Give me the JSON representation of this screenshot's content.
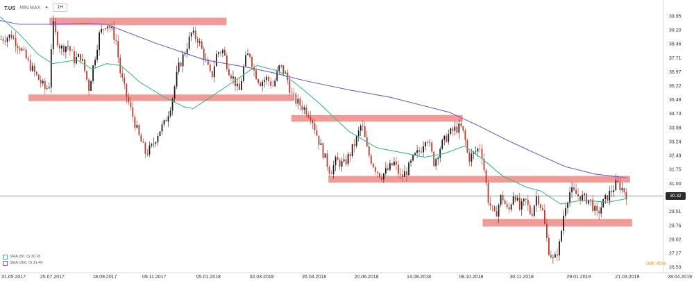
{
  "toolbar": {
    "symbol": "T.US",
    "controls": "MIN MAX",
    "timeframe": "1H"
  },
  "legend": [
    {
      "label": "SMA (50, 0) 30.28",
      "color": "#3cb98a"
    },
    {
      "label": "SMA (200, 0) 31.40",
      "color": "#7c5cc4"
    }
  ],
  "current_price": "30.32",
  "countdown": "09h 45m",
  "colors": {
    "bull": "#1a1a1a",
    "bear": "#c0392b",
    "zone": "#ef8a86",
    "sma50": "#3cb98a",
    "sma200": "#7c5cc4"
  },
  "chart_data": {
    "type": "candlestick",
    "x_range": [
      "2017-05-31",
      "2019-04-28"
    ],
    "y_range": [
      26.53,
      40.5
    ],
    "y_ticks": [
      "39.95",
      "39.20",
      "38.46",
      "37.71",
      "36.97",
      "36.22",
      "35.48",
      "34.73",
      "33.98",
      "33.24",
      "32.49",
      "31.75",
      "31.00",
      "30.25",
      "29.51",
      "28.76",
      "28.02",
      "27.27",
      "26.53"
    ],
    "x_ticks": [
      "31.05.2017",
      "25.07.2017",
      "18.09.2017",
      "09.11.2017",
      "05.01.2018",
      "02.03.2018",
      "26.04.2018",
      "20.06.2018",
      "14.08.2018",
      "08.10.2018",
      "30.11.2018",
      "29.01.2019",
      "21.03.2019",
      "28.04.2019"
    ],
    "x_tick_dates": [
      "2017-05-31",
      "2017-07-25",
      "2017-09-18",
      "2017-11-09",
      "2018-01-05",
      "2018-03-02",
      "2018-04-26",
      "2018-06-20",
      "2018-08-14",
      "2018-10-08",
      "2018-11-30",
      "2019-01-29",
      "2019-03-21",
      "2019-04-28"
    ],
    "price_path": [
      [
        "2017-05-31",
        38.7
      ],
      [
        "2017-06-12",
        38.9
      ],
      [
        "2017-06-22",
        38.2
      ],
      [
        "2017-06-30",
        37.4
      ],
      [
        "2017-07-10",
        36.6
      ],
      [
        "2017-07-18",
        36.0
      ],
      [
        "2017-07-22",
        36.3
      ],
      [
        "2017-07-25",
        39.6
      ],
      [
        "2017-07-29",
        38.8
      ],
      [
        "2017-08-03",
        38.2
      ],
      [
        "2017-08-10",
        38.4
      ],
      [
        "2017-08-17",
        37.6
      ],
      [
        "2017-08-24",
        37.8
      ],
      [
        "2017-08-30",
        36.6
      ],
      [
        "2017-09-01",
        36.0
      ],
      [
        "2017-09-06",
        37.3
      ],
      [
        "2017-09-12",
        38.9
      ],
      [
        "2017-09-20",
        39.6
      ],
      [
        "2017-09-25",
        39.2
      ],
      [
        "2017-09-30",
        38.6
      ],
      [
        "2017-10-04",
        37.0
      ],
      [
        "2017-10-10",
        35.8
      ],
      [
        "2017-10-18",
        34.5
      ],
      [
        "2017-10-24",
        33.5
      ],
      [
        "2017-10-31",
        32.6
      ],
      [
        "2017-11-06",
        32.9
      ],
      [
        "2017-11-14",
        33.8
      ],
      [
        "2017-11-20",
        34.2
      ],
      [
        "2017-11-27",
        35.3
      ],
      [
        "2017-12-04",
        37.1
      ],
      [
        "2017-12-11",
        38.0
      ],
      [
        "2017-12-18",
        39.0
      ],
      [
        "2017-12-25",
        38.7
      ],
      [
        "2018-01-01",
        37.7
      ],
      [
        "2018-01-08",
        36.6
      ],
      [
        "2018-01-14",
        38.0
      ],
      [
        "2018-01-20",
        38.1
      ],
      [
        "2018-01-26",
        37.1
      ],
      [
        "2018-02-02",
        36.4
      ],
      [
        "2018-02-06",
        35.8
      ],
      [
        "2018-02-12",
        37.5
      ],
      [
        "2018-02-17",
        38.0
      ],
      [
        "2018-02-22",
        37.0
      ],
      [
        "2018-02-28",
        36.4
      ],
      [
        "2018-03-07",
        36.6
      ],
      [
        "2018-03-14",
        36.2
      ],
      [
        "2018-03-21",
        37.3
      ],
      [
        "2018-03-28",
        36.7
      ],
      [
        "2018-04-03",
        35.6
      ],
      [
        "2018-04-09",
        35.3
      ],
      [
        "2018-04-16",
        35.0
      ],
      [
        "2018-04-23",
        34.6
      ],
      [
        "2018-04-30",
        33.4
      ],
      [
        "2018-05-07",
        32.4
      ],
      [
        "2018-05-13",
        31.6
      ],
      [
        "2018-05-19",
        32.2
      ],
      [
        "2018-05-27",
        32.0
      ],
      [
        "2018-06-03",
        32.6
      ],
      [
        "2018-06-09",
        33.3
      ],
      [
        "2018-06-15",
        34.2
      ],
      [
        "2018-06-21",
        32.7
      ],
      [
        "2018-06-28",
        31.9
      ],
      [
        "2018-07-05",
        31.4
      ],
      [
        "2018-07-12",
        31.7
      ],
      [
        "2018-07-19",
        32.1
      ],
      [
        "2018-07-26",
        31.3
      ],
      [
        "2018-08-02",
        31.7
      ],
      [
        "2018-08-09",
        32.4
      ],
      [
        "2018-08-16",
        32.8
      ],
      [
        "2018-08-22",
        33.6
      ],
      [
        "2018-08-30",
        32.1
      ],
      [
        "2018-09-06",
        33.0
      ],
      [
        "2018-09-14",
        33.6
      ],
      [
        "2018-09-21",
        33.9
      ],
      [
        "2018-09-27",
        34.0
      ],
      [
        "2018-10-01",
        33.5
      ],
      [
        "2018-10-05",
        32.3
      ],
      [
        "2018-10-11",
        32.6
      ],
      [
        "2018-10-18",
        33.0
      ],
      [
        "2018-10-22",
        31.6
      ],
      [
        "2018-10-26",
        30.1
      ],
      [
        "2018-11-02",
        29.2
      ],
      [
        "2018-11-09",
        30.4
      ],
      [
        "2018-11-16",
        29.4
      ],
      [
        "2018-11-22",
        30.6
      ],
      [
        "2018-11-28",
        29.6
      ],
      [
        "2018-12-04",
        30.1
      ],
      [
        "2018-12-10",
        29.3
      ],
      [
        "2018-12-16",
        30.4
      ],
      [
        "2018-12-22",
        29.5
      ],
      [
        "2018-12-28",
        27.5
      ],
      [
        "2019-01-03",
        26.8
      ],
      [
        "2019-01-09",
        27.8
      ],
      [
        "2019-01-14",
        29.7
      ],
      [
        "2019-01-20",
        30.6
      ],
      [
        "2019-01-27",
        30.4
      ],
      [
        "2019-02-03",
        30.2
      ],
      [
        "2019-02-10",
        30.1
      ],
      [
        "2019-02-17",
        29.3
      ],
      [
        "2019-02-24",
        30.0
      ],
      [
        "2019-03-03",
        30.5
      ],
      [
        "2019-03-10",
        31.0
      ],
      [
        "2019-03-14",
        30.8
      ],
      [
        "2019-03-18",
        30.6
      ],
      [
        "2019-03-21",
        30.3
      ]
    ],
    "sma50": [
      [
        "2017-05-31",
        39.9
      ],
      [
        "2017-06-20",
        39.0
      ],
      [
        "2017-07-10",
        37.9
      ],
      [
        "2017-07-25",
        37.4
      ],
      [
        "2017-08-20",
        37.6
      ],
      [
        "2017-09-05",
        37.1
      ],
      [
        "2017-09-20",
        37.4
      ],
      [
        "2017-10-05",
        37.3
      ],
      [
        "2017-10-25",
        36.4
      ],
      [
        "2017-11-20",
        35.6
      ],
      [
        "2017-12-10",
        35.1
      ],
      [
        "2017-12-20",
        35.0
      ],
      [
        "2018-01-10",
        35.7
      ],
      [
        "2018-02-05",
        36.6
      ],
      [
        "2018-02-25",
        37.3
      ],
      [
        "2018-03-20",
        37.0
      ],
      [
        "2018-04-10",
        36.2
      ],
      [
        "2018-05-01",
        35.3
      ],
      [
        "2018-06-01",
        33.8
      ],
      [
        "2018-07-01",
        32.9
      ],
      [
        "2018-08-01",
        32.6
      ],
      [
        "2018-08-20",
        32.4
      ],
      [
        "2018-09-10",
        32.6
      ],
      [
        "2018-10-01",
        33.0
      ],
      [
        "2018-10-20",
        32.3
      ],
      [
        "2018-11-10",
        31.4
      ],
      [
        "2018-12-05",
        30.8
      ],
      [
        "2018-12-20",
        30.6
      ],
      [
        "2019-01-10",
        29.9
      ],
      [
        "2019-02-01",
        30.1
      ],
      [
        "2019-03-01",
        30.0
      ],
      [
        "2019-03-21",
        30.2
      ]
    ],
    "sma200": [
      [
        "2017-05-31",
        39.7
      ],
      [
        "2017-06-20",
        39.5
      ],
      [
        "2017-07-20",
        39.5
      ],
      [
        "2017-08-30",
        39.55
      ],
      [
        "2017-09-20",
        39.5
      ],
      [
        "2017-10-10",
        39.1
      ],
      [
        "2017-11-10",
        38.5
      ],
      [
        "2018-01-01",
        37.6
      ],
      [
        "2018-02-15",
        37.2
      ],
      [
        "2018-03-15",
        36.9
      ],
      [
        "2018-04-15",
        36.5
      ],
      [
        "2018-06-01",
        36.0
      ],
      [
        "2018-07-15",
        35.6
      ],
      [
        "2018-08-15",
        35.2
      ],
      [
        "2018-09-15",
        34.8
      ],
      [
        "2018-10-15",
        34.1
      ],
      [
        "2018-11-15",
        33.3
      ],
      [
        "2018-12-15",
        32.6
      ],
      [
        "2019-01-15",
        31.9
      ],
      [
        "2019-02-15",
        31.5
      ],
      [
        "2019-03-21",
        31.3
      ]
    ],
    "zones": [
      {
        "from": "2017-07-22",
        "to": "2018-01-24",
        "low": 39.45,
        "high": 39.85
      },
      {
        "from": "2017-06-30",
        "to": "2018-04-05",
        "low": 35.4,
        "high": 35.75
      },
      {
        "from": "2018-04-02",
        "to": "2018-09-29",
        "low": 34.3,
        "high": 34.65
      },
      {
        "from": "2018-05-11",
        "to": "2019-03-24",
        "low": 31.05,
        "high": 31.4
      },
      {
        "from": "2018-10-20",
        "to": "2019-03-26",
        "low": 28.7,
        "high": 29.1
      }
    ],
    "current_price": 30.32,
    "legend_placement": "bottom-left",
    "grid": false
  }
}
